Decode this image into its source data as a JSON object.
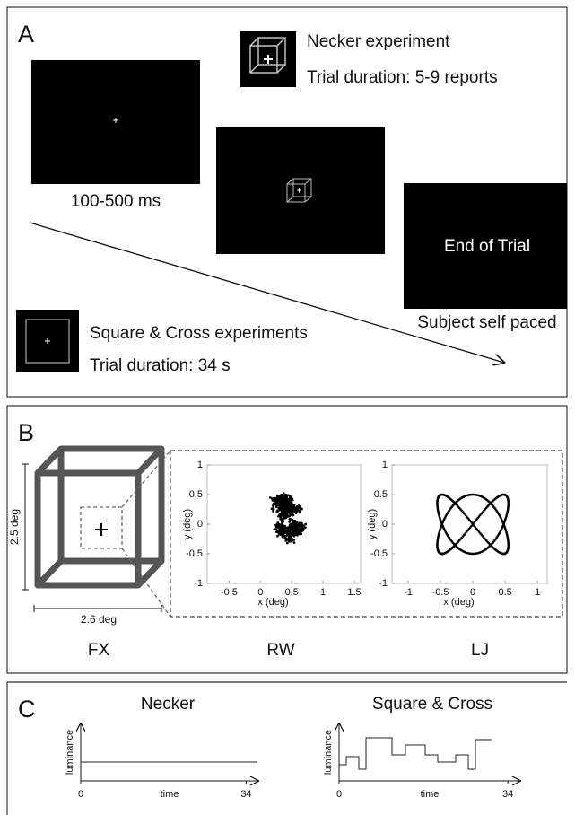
{
  "panel_a": {
    "label": "A",
    "necker_title": "Necker experiment",
    "necker_duration": "Trial duration: 5-9 reports",
    "fixation_time": "100-500 ms",
    "end_text": "End of Trial",
    "self_paced": "Subject self paced",
    "square_title": "Square & Cross experiments",
    "square_duration": "Trial duration: 34 s"
  },
  "panel_b": {
    "label": "B",
    "height_label": "2.5 deg",
    "width_label": "2.6 deg",
    "conditions": [
      "FX",
      "RW",
      "LJ"
    ],
    "plots": [
      {
        "xlabel": "x (deg)",
        "ylabel": "y (deg)",
        "xlim": [
          -0.85,
          1.6
        ],
        "ylim": [
          -1,
          1
        ],
        "xticks": [
          -0.5,
          0,
          0.5,
          1,
          1.5
        ],
        "yticks": [
          -1,
          -0.5,
          0,
          0.5,
          1
        ]
      },
      {
        "xlabel": "x (deg)",
        "ylabel": "y (deg)",
        "xlim": [
          -1.25,
          1.15
        ],
        "ylim": [
          -1,
          1
        ],
        "xticks": [
          -1,
          -0.5,
          0,
          0.5,
          1
        ],
        "yticks": [
          -1,
          -0.5,
          0,
          0.5,
          1
        ]
      }
    ]
  },
  "panel_c": {
    "label": "C",
    "plots": [
      {
        "title": "Necker",
        "ylabel": "luminance",
        "xlabel": "time",
        "xlim": [
          0,
          36.5
        ],
        "xticks": [
          0,
          34
        ]
      },
      {
        "title": "Square & Cross",
        "ylabel": "luminance",
        "xlabel": "time",
        "xlim": [
          0,
          36.5
        ],
        "xticks": [
          0,
          34
        ]
      }
    ]
  }
}
